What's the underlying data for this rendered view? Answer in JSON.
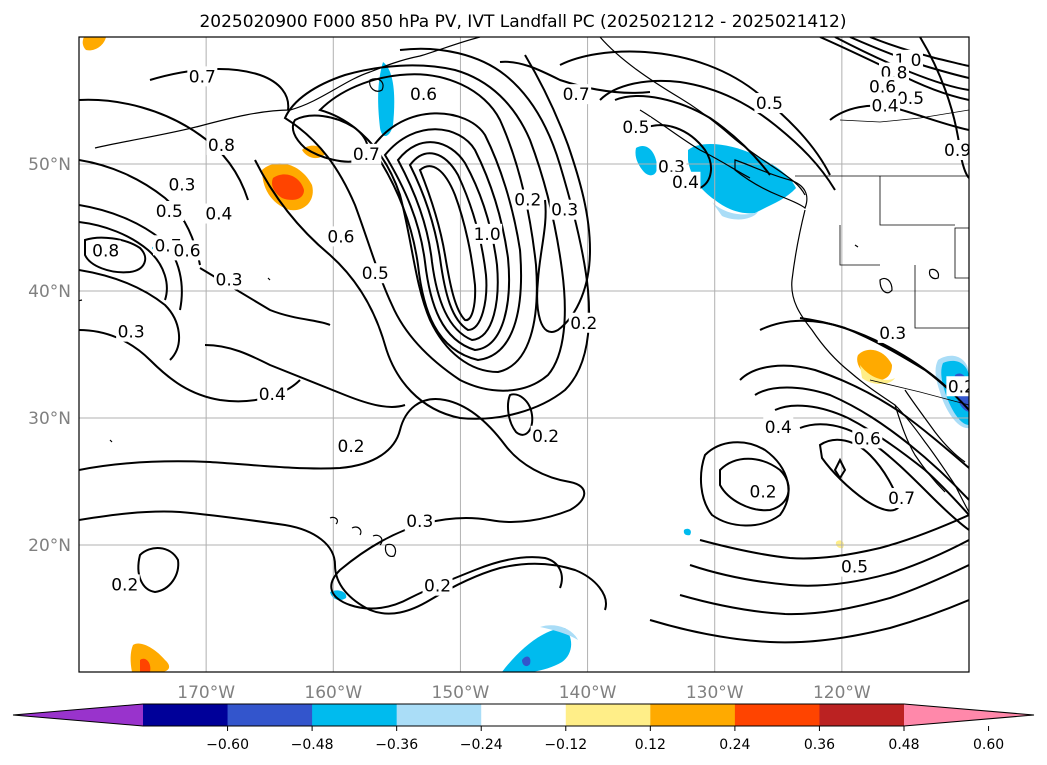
{
  "title": "2025020900 F000 850 hPa PV, IVT Landfall PC (2025021212 - 2025021412)",
  "map": {
    "lon_range": [
      -180,
      -110
    ],
    "lat_range": [
      10,
      60
    ],
    "projection": "PlateCarree",
    "gridlines": true,
    "lon_ticks": [
      {
        "lon": -170,
        "label": "170°W"
      },
      {
        "lon": -160,
        "label": "160°W"
      },
      {
        "lon": -150,
        "label": "150°W"
      },
      {
        "lon": -140,
        "label": "140°W"
      },
      {
        "lon": -130,
        "label": "130°W"
      },
      {
        "lon": -120,
        "label": "120°W"
      }
    ],
    "lat_ticks": [
      {
        "lat": 20,
        "label": "20°N"
      },
      {
        "lat": 30,
        "label": "30°N"
      },
      {
        "lat": 40,
        "label": "40°N"
      },
      {
        "lat": 50,
        "label": "50°N"
      }
    ]
  },
  "contour_labels": [
    {
      "text": "1.0",
      "lon": -147.9,
      "lat": 44.5
    },
    {
      "text": "0.8",
      "lon": -168.8,
      "lat": 51.5
    },
    {
      "text": "0.7",
      "lon": -157.4,
      "lat": 50.8
    },
    {
      "text": "0.7",
      "lon": -170.3,
      "lat": 56.9
    },
    {
      "text": "0.6",
      "lon": -152.9,
      "lat": 55.5
    },
    {
      "text": "0.7",
      "lon": -140.9,
      "lat": 55.5
    },
    {
      "text": "0.5",
      "lon": -136.2,
      "lat": 52.9
    },
    {
      "text": "0.3",
      "lon": -133.4,
      "lat": 49.8
    },
    {
      "text": "0.4",
      "lon": -132.3,
      "lat": 48.6
    },
    {
      "text": "0.5",
      "lon": -125.7,
      "lat": 54.8
    },
    {
      "text": "1.0",
      "lon": -114.8,
      "lat": 58.2
    },
    {
      "text": "0.8",
      "lon": -115.9,
      "lat": 57.2
    },
    {
      "text": "0.6",
      "lon": -116.8,
      "lat": 56.1
    },
    {
      "text": "0.5",
      "lon": -114.6,
      "lat": 55.2
    },
    {
      "text": "0.4",
      "lon": -116.6,
      "lat": 54.6
    },
    {
      "text": "0.9",
      "lon": -110.9,
      "lat": 51.1
    },
    {
      "text": "0.3",
      "lon": -171.9,
      "lat": 48.4
    },
    {
      "text": "0.5",
      "lon": -172.9,
      "lat": 46.3
    },
    {
      "text": "0.4",
      "lon": -169.0,
      "lat": 46.1
    },
    {
      "text": "0.7",
      "lon": -173.0,
      "lat": 43.6
    },
    {
      "text": "0.6",
      "lon": -171.5,
      "lat": 43.2
    },
    {
      "text": "0.8",
      "lon": -177.9,
      "lat": 43.2
    },
    {
      "text": "0.6",
      "lon": -159.4,
      "lat": 44.3
    },
    {
      "text": "0.5",
      "lon": -156.7,
      "lat": 41.4
    },
    {
      "text": "0.2",
      "lon": -144.7,
      "lat": 47.2
    },
    {
      "text": "0.3",
      "lon": -141.8,
      "lat": 46.4
    },
    {
      "text": "0.3",
      "lon": -168.2,
      "lat": 40.9
    },
    {
      "text": "0.3",
      "lon": -175.9,
      "lat": 36.8
    },
    {
      "text": "0.2",
      "lon": -140.3,
      "lat": 37.5
    },
    {
      "text": "0.4",
      "lon": -164.8,
      "lat": 31.9
    },
    {
      "text": "0.2",
      "lon": -143.3,
      "lat": 28.6
    },
    {
      "text": "0.2",
      "lon": -158.6,
      "lat": 27.8
    },
    {
      "text": "0.3",
      "lon": -153.2,
      "lat": 21.9
    },
    {
      "text": "0.2",
      "lon": -151.8,
      "lat": 16.8
    },
    {
      "text": "0.2",
      "lon": -176.4,
      "lat": 16.9
    },
    {
      "text": "0.4",
      "lon": -125.0,
      "lat": 29.3
    },
    {
      "text": "0.2",
      "lon": -126.2,
      "lat": 24.2
    },
    {
      "text": "0.6",
      "lon": -118.0,
      "lat": 28.4
    },
    {
      "text": "0.7",
      "lon": -115.3,
      "lat": 23.7
    },
    {
      "text": "0.5",
      "lon": -119.0,
      "lat": 18.3
    },
    {
      "text": "0.3",
      "lon": -116.0,
      "lat": 36.7
    },
    {
      "text": "0.2",
      "lon": -110.6,
      "lat": 32.5
    }
  ],
  "colorbar": {
    "colors": [
      "#9933cc",
      "#000099",
      "#3355cc",
      "#00bbee",
      "#aaddf7",
      "#ffffff",
      "#ffee88",
      "#ffaa00",
      "#ff4400",
      "#bb2222",
      "#ff88aa"
    ],
    "extend": "both",
    "ticks": [
      "−0.60",
      "−0.48",
      "−0.36",
      "−0.24",
      "−0.12",
      "0.12",
      "0.24",
      "0.36",
      "0.48",
      "0.60"
    ]
  }
}
